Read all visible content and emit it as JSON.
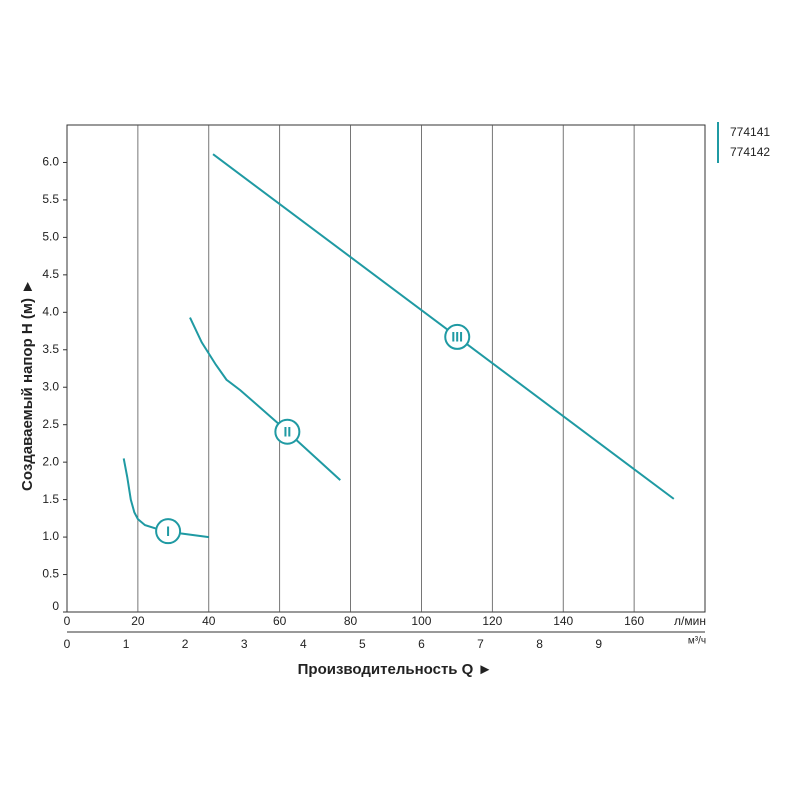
{
  "chart_data": {
    "type": "line",
    "y_label": "Создаваемый напор Н (м) ►",
    "x_label": "Производительность Q ►",
    "x_unit": "л/мин",
    "x2_unit": "м³/ч",
    "legend": [
      "774141",
      "774142"
    ],
    "xlim": [
      0,
      180
    ],
    "xticks": [
      0,
      20,
      40,
      60,
      80,
      100,
      120,
      140,
      160
    ],
    "x2lim": [
      0,
      10.8
    ],
    "x2ticks": [
      0,
      1,
      2,
      3,
      4,
      5,
      6,
      7,
      8,
      9
    ],
    "ylim": [
      0,
      6.5
    ],
    "yticks": [
      0,
      0.5,
      {
        "value": 1,
        "label": "1.0"
      },
      1.5,
      {
        "value": 2,
        "label": "2.0"
      },
      2.5,
      {
        "value": 3,
        "label": "3.0"
      },
      3.5,
      {
        "value": 4,
        "label": "4.0"
      },
      4.5,
      {
        "value": 5,
        "label": "5.0"
      },
      5.5,
      {
        "value": 6,
        "label": "6.0"
      }
    ],
    "grid": "x",
    "series": [
      {
        "name": "I",
        "color": "#1f9aa3",
        "x": [
          16,
          17,
          18,
          19,
          20,
          22,
          26,
          32,
          40
        ],
        "values": [
          2.05,
          1.8,
          1.5,
          1.33,
          1.24,
          1.16,
          1.1,
          1.05,
          1.0
        ]
      },
      {
        "name": "II",
        "color": "#1f9aa3",
        "x": [
          34.7,
          38,
          42,
          45,
          48.9,
          60,
          77.1
        ],
        "values": [
          3.93,
          3.6,
          3.3,
          3.1,
          2.96,
          2.5,
          1.76
        ]
      },
      {
        "name": "III",
        "color": "#1f9aa3",
        "x": [
          41.2,
          171.2
        ],
        "values": [
          6.11,
          1.51
        ]
      }
    ]
  }
}
